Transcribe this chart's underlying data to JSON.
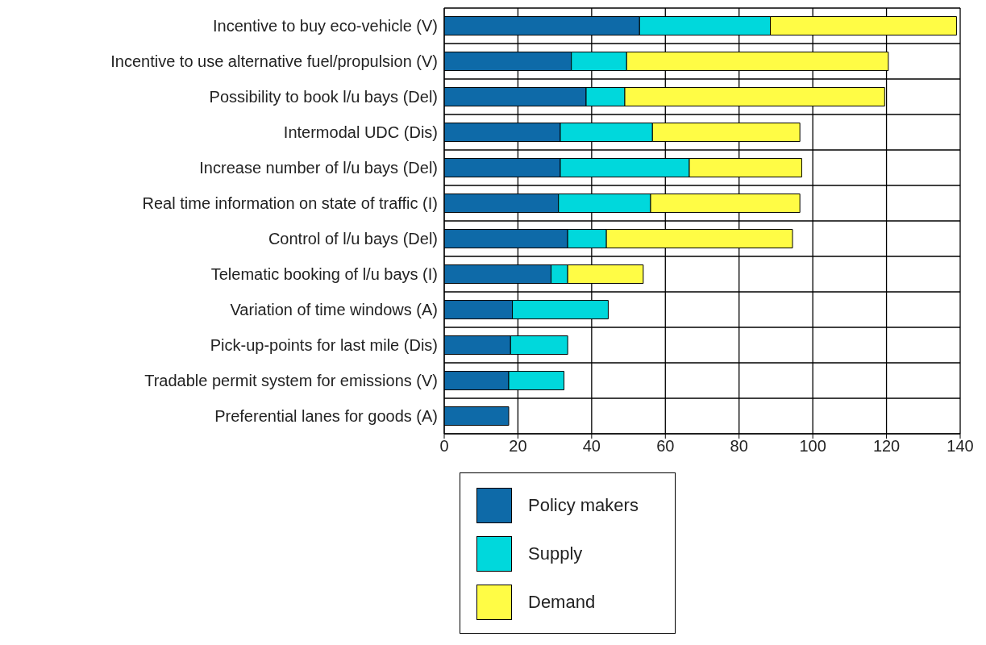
{
  "chart_data": {
    "type": "bar",
    "orientation": "horizontal",
    "stacked": true,
    "categories": [
      "Incentive to buy eco-vehicle (V)",
      "Incentive to use alternative fuel/propulsion (V)",
      "Possibility to book l/u bays (Del)",
      "Intermodal UDC (Dis)",
      "Increase number of l/u bays (Del)",
      "Real time information on state of traffic (I)",
      "Control of l/u bays (Del)",
      "Telematic booking of l/u bays (I)",
      "Variation of time windows (A)",
      "Pick-up-points for last mile (Dis)",
      "Tradable permit system for emissions (V)",
      "Preferential lanes for goods (A)"
    ],
    "series": [
      {
        "name": "Policy makers",
        "color": "#0e6aa8",
        "values": [
          53,
          34.5,
          38.5,
          31.5,
          31.5,
          31,
          33.5,
          29,
          18.5,
          18,
          17.5,
          17.5
        ]
      },
      {
        "name": "Supply",
        "color": "#00d8dc",
        "values": [
          35.5,
          15,
          10.5,
          25,
          35,
          25,
          10.5,
          4.5,
          26,
          15.5,
          15,
          null
        ]
      },
      {
        "name": "Demand",
        "color": "#fffc45",
        "values": [
          50.5,
          71,
          70.5,
          40,
          30.5,
          40.5,
          50.5,
          20.5,
          null,
          null,
          null,
          null
        ]
      }
    ],
    "xlim": [
      0,
      140
    ],
    "xticks": [
      0,
      20,
      40,
      60,
      80,
      100,
      120,
      140
    ],
    "grid": true,
    "legend": "bottom"
  }
}
